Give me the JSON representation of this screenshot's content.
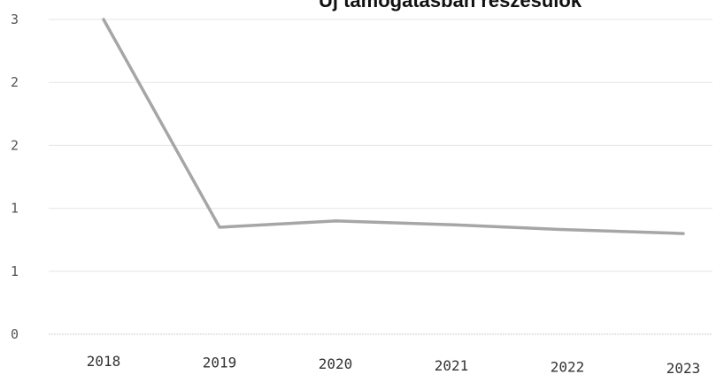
{
  "chart_data": {
    "type": "line",
    "title": "Új támogatásban részesülők",
    "xlabel": "",
    "ylabel": "",
    "categories": [
      "2018",
      "2019",
      "2020",
      "2021",
      "2022",
      "2023"
    ],
    "series": [
      {
        "values": [
          2.5,
          0.85,
          0.9,
          0.87,
          0.83,
          0.8
        ]
      }
    ],
    "y_tick_labels": [
      "0",
      "1",
      "1",
      "2",
      "2",
      "3"
    ],
    "y_tick_values": [
      0,
      0.5,
      1,
      1.5,
      2,
      2.5
    ],
    "ylim": [
      0,
      2.5
    ],
    "grid": true,
    "legend": "none",
    "line_color": "#a6a6a6",
    "grid_color": "#e6e6e6"
  }
}
